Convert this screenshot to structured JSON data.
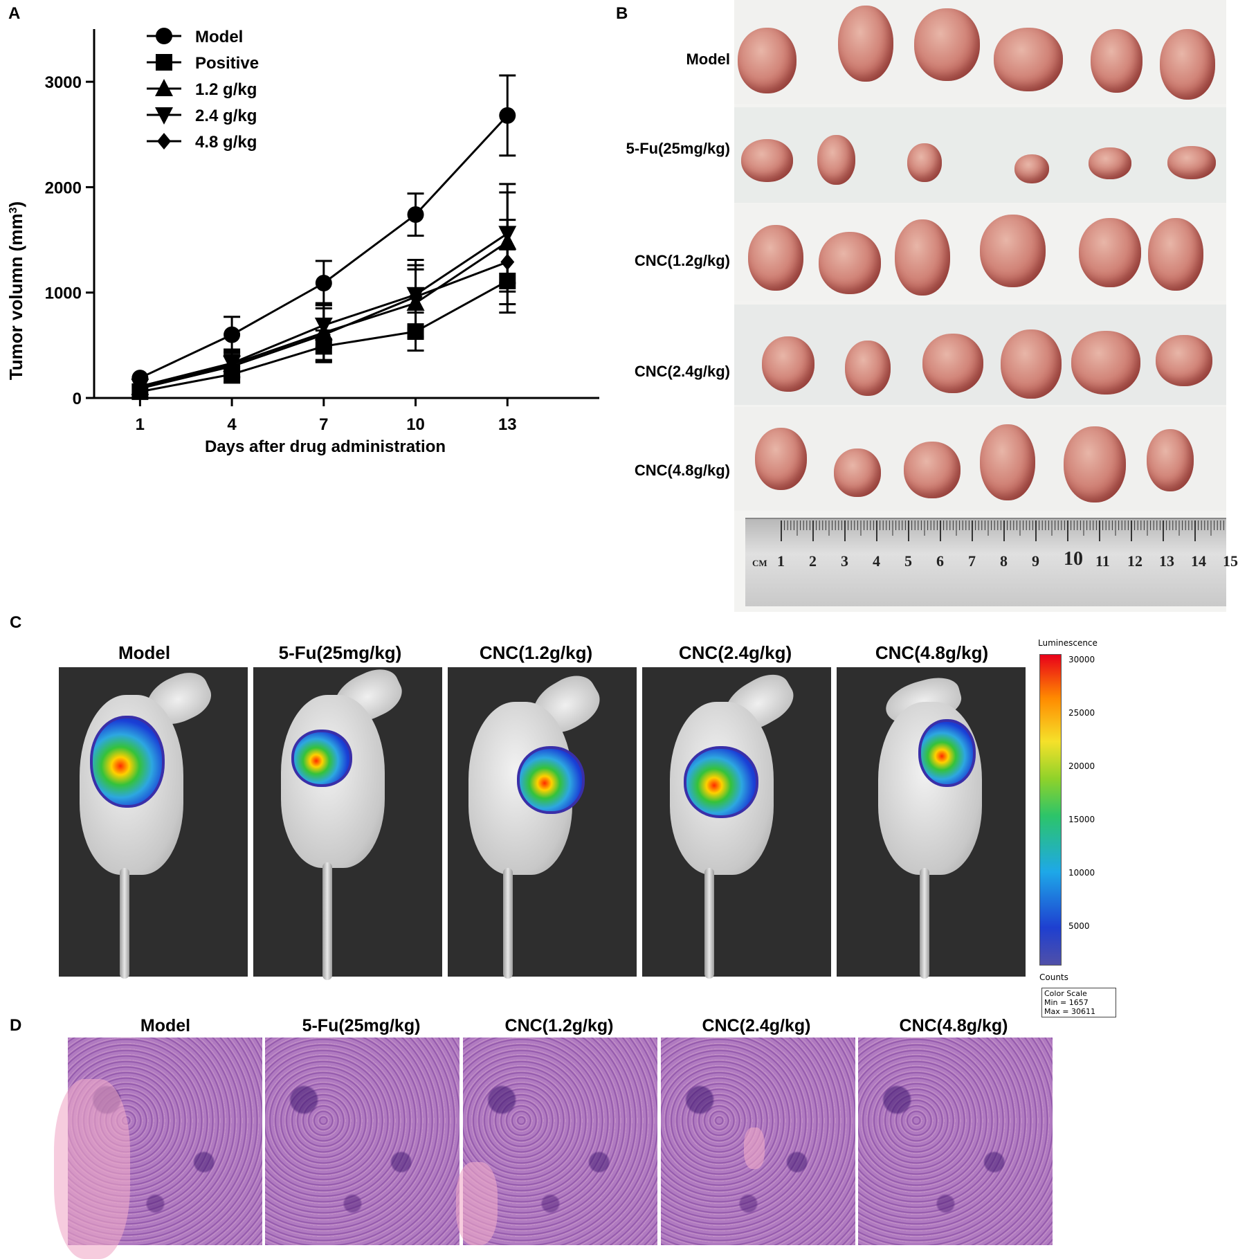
{
  "panels": {
    "a": "A",
    "b": "B",
    "c": "C",
    "d": "D"
  },
  "chart_data": {
    "type": "line",
    "ylabel_main": "Tumor volumn (mm",
    "ylabel_sup": "3",
    "ylabel_close": ")",
    "xlabel": "Days after drug administration",
    "x": [
      1,
      4,
      7,
      10,
      13
    ],
    "xticks": [
      "1",
      "4",
      "7",
      "10",
      "13"
    ],
    "yticks": [
      0,
      1000,
      2000,
      3000
    ],
    "ytick_labels": [
      "0",
      "1000",
      "2000",
      "3000"
    ],
    "ylim": [
      0,
      3500
    ],
    "xlim": [
      -0.5,
      16
    ],
    "series": [
      {
        "name": "Model",
        "marker": "circle",
        "values": [
          190,
          600,
          1090,
          1740,
          2680
        ],
        "err": [
          0,
          170,
          210,
          200,
          380
        ]
      },
      {
        "name": "Positive",
        "marker": "square",
        "values": [
          60,
          225,
          490,
          630,
          1110
        ],
        "err": [
          0,
          80,
          150,
          180,
          300
        ]
      },
      {
        "name": "1.2 g/kg",
        "marker": "triangle-up",
        "values": [
          100,
          320,
          620,
          900,
          1480
        ],
        "err": [
          0,
          120,
          260,
          320,
          470
        ]
      },
      {
        "name": "2.4 g/kg",
        "marker": "triangle-down",
        "values": [
          110,
          330,
          690,
          980,
          1560
        ],
        "err": [
          0,
          130,
          210,
          330,
          470
        ]
      },
      {
        "name": "4.8 g/kg",
        "marker": "diamond",
        "values": [
          90,
          300,
          600,
          960,
          1290
        ],
        "err": [
          0,
          110,
          250,
          300,
          400
        ]
      }
    ],
    "legend_position": "top-left"
  },
  "tumor_rows": [
    {
      "label": "Model"
    },
    {
      "label": "5-Fu(25mg/kg)"
    },
    {
      "label": "CNC(1.2g/kg)"
    },
    {
      "label": "CNC(2.4g/kg)"
    },
    {
      "label": "CNC(4.8g/kg)"
    }
  ],
  "ruler": {
    "unit": "CM",
    "numbers": [
      "1",
      "2",
      "3",
      "4",
      "5",
      "6",
      "7",
      "8",
      "9",
      "10",
      "11",
      "12",
      "13",
      "14",
      "15"
    ]
  },
  "imaging": {
    "titles": [
      "Model",
      "5-Fu(25mg/kg)",
      "CNC(1.2g/kg)",
      "CNC(2.4g/kg)",
      "CNC(4.8g/kg)"
    ],
    "colorbar_title": "Luminescence",
    "colorbar_ticks": [
      "30000",
      "25000",
      "20000",
      "15000",
      "10000",
      "5000"
    ],
    "counts_label": "Counts",
    "color_scale_label": "Color Scale",
    "min_label": "Min = 1657",
    "max_label": "Max = 30611"
  },
  "histology": {
    "titles": [
      "Model",
      "5-Fu(25mg/kg)",
      "CNC(1.2g/kg)",
      "CNC(2.4g/kg)",
      "CNC(4.8g/kg)"
    ]
  }
}
